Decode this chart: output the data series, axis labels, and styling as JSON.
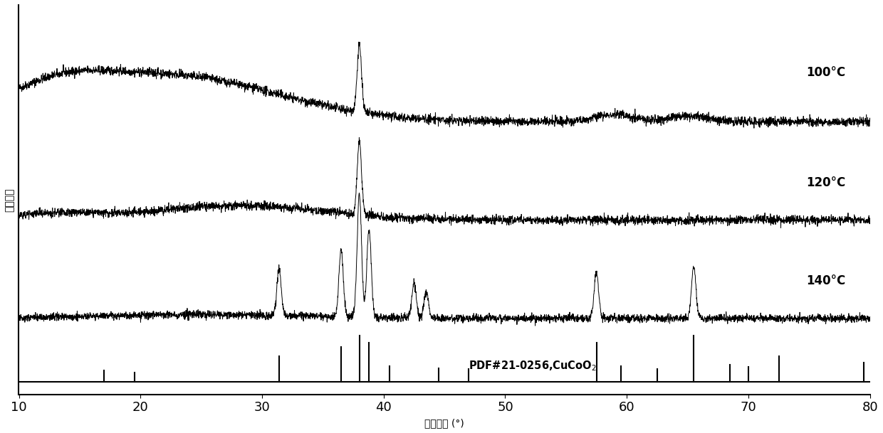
{
  "xmin": 10,
  "xmax": 80,
  "xlabel": "衍射角度 (°)",
  "ylabel": "相对强度",
  "labels": [
    "100°C",
    "120°C",
    "140°C"
  ],
  "offsets": [
    1.6,
    0.8,
    0.0
  ],
  "ref_peaks": [
    17.0,
    19.5,
    31.4,
    36.5,
    38.0,
    38.8,
    40.5,
    44.5,
    47.0,
    57.5,
    59.5,
    62.5,
    65.5,
    68.5,
    70.0,
    72.5,
    79.5
  ],
  "ref_peak_heights_norm": [
    0.25,
    0.2,
    0.55,
    0.75,
    1.0,
    0.85,
    0.35,
    0.3,
    0.28,
    0.85,
    0.35,
    0.28,
    1.0,
    0.38,
    0.32,
    0.55,
    0.42
  ],
  "background_color": "#ffffff",
  "line_color": "#000000",
  "noise_seed": 42,
  "peak_positions_140": [
    31.4,
    36.5,
    38.0,
    38.8,
    42.5,
    43.5,
    57.5,
    65.5
  ],
  "peak_heights_140": [
    0.38,
    0.55,
    1.0,
    0.72,
    0.28,
    0.22,
    0.38,
    0.42
  ],
  "peak_positions_120": [
    38.0
  ],
  "peak_heights_120": [
    0.6
  ],
  "peak_positions_100": [
    38.0
  ],
  "peak_heights_100": [
    0.55
  ]
}
